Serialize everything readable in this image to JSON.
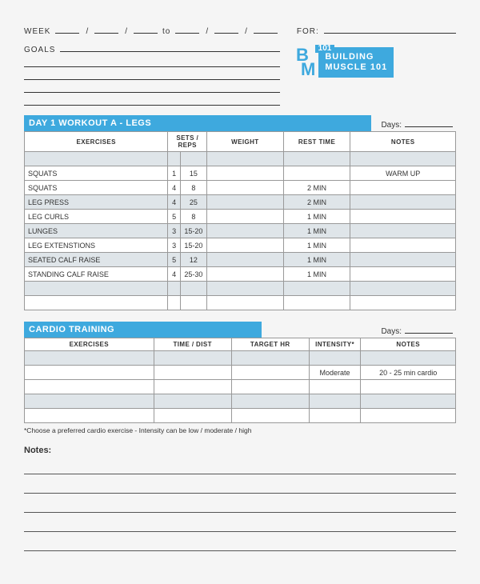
{
  "header": {
    "week_label": "WEEK",
    "to_label": "to",
    "for_label": "FOR:",
    "goals_label": "GOALS"
  },
  "logo": {
    "brand_b": "B",
    "brand_m": "M",
    "brand_num": "101",
    "line1": "BUILDING",
    "line2": "MUSCLE 101"
  },
  "workout": {
    "title": "DAY 1 WORKOUT A - LEGS",
    "days_label": "Days:",
    "columns": {
      "exercises": "EXERCISES",
      "sets_reps": "SETS / REPS",
      "weight": "WEIGHT",
      "rest": "REST TIME",
      "notes": "NOTES"
    },
    "rows": [
      {
        "shade": true,
        "name": "",
        "sets": "",
        "reps": "",
        "weight": "",
        "rest": "",
        "notes": ""
      },
      {
        "shade": false,
        "name": "SQUATS",
        "sets": "1",
        "reps": "15",
        "weight": "",
        "rest": "",
        "notes": "WARM UP"
      },
      {
        "shade": false,
        "name": "SQUATS",
        "sets": "4",
        "reps": "8",
        "weight": "",
        "rest": "2 MIN",
        "notes": ""
      },
      {
        "shade": true,
        "name": "LEG PRESS",
        "sets": "4",
        "reps": "25",
        "weight": "",
        "rest": "2 MIN",
        "notes": ""
      },
      {
        "shade": false,
        "name": "LEG CURLS",
        "sets": "5",
        "reps": "8",
        "weight": "",
        "rest": "1 MIN",
        "notes": ""
      },
      {
        "shade": true,
        "name": "LUNGES",
        "sets": "3",
        "reps": "15-20",
        "weight": "",
        "rest": "1 MIN",
        "notes": ""
      },
      {
        "shade": false,
        "name": "LEG EXTENSTIONS",
        "sets": "3",
        "reps": "15-20",
        "weight": "",
        "rest": "1 MIN",
        "notes": ""
      },
      {
        "shade": true,
        "name": "SEATED CALF RAISE",
        "sets": "5",
        "reps": "12",
        "weight": "",
        "rest": "1 MIN",
        "notes": ""
      },
      {
        "shade": false,
        "name": "STANDING CALF RAISE",
        "sets": "4",
        "reps": "25-30",
        "weight": "",
        "rest": "1 MIN",
        "notes": ""
      },
      {
        "shade": true,
        "name": "",
        "sets": "",
        "reps": "",
        "weight": "",
        "rest": "",
        "notes": ""
      },
      {
        "shade": false,
        "name": "",
        "sets": "",
        "reps": "",
        "weight": "",
        "rest": "",
        "notes": ""
      }
    ]
  },
  "cardio": {
    "title": "CARDIO TRAINING",
    "days_label": "Days:",
    "columns": {
      "exercises": "EXERCISES",
      "time": "TIME / DIST",
      "hr": "TARGET HR",
      "intensity": "INTENSITY*",
      "notes": "NOTES"
    },
    "rows": [
      {
        "shade": true,
        "name": "",
        "time": "",
        "hr": "",
        "intensity": "",
        "notes": ""
      },
      {
        "shade": false,
        "name": "",
        "time": "",
        "hr": "",
        "intensity": "Moderate",
        "notes": "20 - 25 min cardio"
      },
      {
        "shade": false,
        "name": "",
        "time": "",
        "hr": "",
        "intensity": "",
        "notes": ""
      },
      {
        "shade": true,
        "name": "",
        "time": "",
        "hr": "",
        "intensity": "",
        "notes": ""
      },
      {
        "shade": false,
        "name": "",
        "time": "",
        "hr": "",
        "intensity": "",
        "notes": ""
      }
    ],
    "footnote": "*Choose a preferred cardio exercise - Intensity can be low / moderate / high"
  },
  "notes": {
    "label": "Notes:",
    "line_count": 5
  },
  "style": {
    "accent": "#3ea9de",
    "shade_bg": "#dfe5e9",
    "border": "#999999",
    "text": "#333333"
  }
}
